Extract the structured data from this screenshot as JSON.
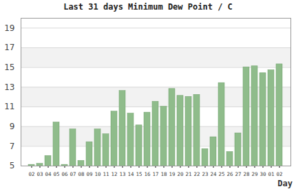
{
  "chart_data": {
    "type": "bar",
    "title": "Last 31 days Minimum Dew Point / C",
    "x_label": "Day",
    "categories": [
      "02",
      "03",
      "04",
      "05",
      "06",
      "07",
      "08",
      "09",
      "10",
      "11",
      "12",
      "13",
      "14",
      "15",
      "16",
      "17",
      "18",
      "19",
      "20",
      "21",
      "22",
      "23",
      "24",
      "25",
      "26",
      "27",
      "28",
      "29",
      "30",
      "01",
      "02"
    ],
    "values": [
      5.2,
      5.3,
      6.1,
      9.5,
      5.2,
      8.8,
      5.6,
      7.5,
      8.8,
      8.3,
      10.6,
      12.7,
      10.4,
      9.2,
      10.5,
      11.6,
      11.1,
      12.9,
      12.2,
      12.1,
      12.3,
      6.8,
      8.0,
      13.5,
      6.5,
      8.4,
      15.1,
      15.2,
      14.5,
      14.8,
      15.4
    ],
    "color": "#8fbc8b",
    "ylim": [
      5,
      20
    ],
    "yticks": [
      5,
      7,
      9,
      11,
      13,
      15,
      17,
      19
    ],
    "grid": true
  }
}
